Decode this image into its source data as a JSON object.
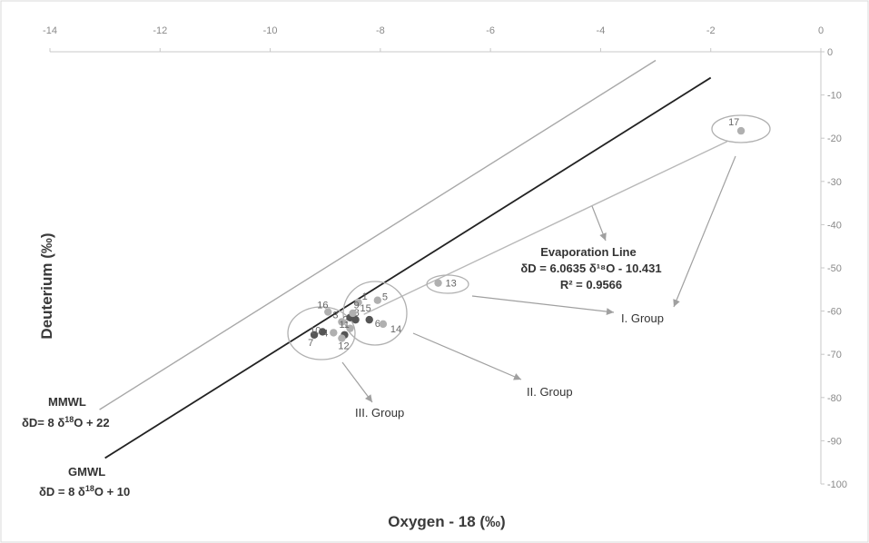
{
  "chart_data": {
    "type": "scatter",
    "xlabel": "Oxygen - 18 (‰)",
    "ylabel": "Deuterium (‰)",
    "xlim": [
      -14,
      0
    ],
    "ylim": [
      -100,
      0
    ],
    "x_axis_position": "top",
    "y_axis_position": "right",
    "x_ticks": [
      "-14",
      "-12",
      "-10",
      "-8",
      "-6",
      "-4",
      "-2",
      "0"
    ],
    "y_ticks": [
      "0",
      "-10",
      "-20",
      "-30",
      "-40",
      "-50",
      "-60",
      "-70",
      "-80",
      "-90",
      "-100"
    ],
    "grid": false,
    "colors": {
      "axis": "#c8c8c8",
      "mmwl": "#a8a8a8",
      "gmwl": "#222222",
      "evap": "#b8b8b8",
      "arrow": "#a0a0a0",
      "ellipse": "#b0b0b0",
      "dark_point": "#555555",
      "light_point": "#b0b0b0"
    },
    "lines": [
      {
        "name": "MMWL",
        "slope": 8,
        "intercept": 22,
        "x_range": [
          -13.1,
          -3.0
        ],
        "label_lines": [
          "MMWL",
          "δD= 8 δ18O + 22"
        ]
      },
      {
        "name": "GMWL",
        "slope": 8,
        "intercept": 10,
        "x_range": [
          -13.0,
          -2.0
        ],
        "label_lines": [
          "GMWL",
          "δD = 8 δ18O + 10"
        ]
      },
      {
        "name": "Evaporation Line",
        "slope": 6.0635,
        "intercept": -10.431,
        "x_range": [
          -8.3,
          -1.7
        ]
      }
    ],
    "evaporation_label": {
      "title": "Evaporation Line",
      "equation": "δD = 6.0635 δ¹⁸O - 10.431",
      "r2": "R² = 0.9566"
    },
    "points": [
      {
        "id": "1",
        "x": -8.4,
        "y": -58,
        "shade": "light"
      },
      {
        "id": "2",
        "x": -8.55,
        "y": -64,
        "shade": "light"
      },
      {
        "id": "3",
        "x": -8.7,
        "y": -62.5,
        "shade": "light"
      },
      {
        "id": "4",
        "x": -8.85,
        "y": -65,
        "shade": "light"
      },
      {
        "id": "5",
        "x": -8.05,
        "y": -57.5,
        "shade": "light"
      },
      {
        "id": "6",
        "x": -8.2,
        "y": -62,
        "shade": "dark"
      },
      {
        "id": "7",
        "x": -9.2,
        "y": -65.5,
        "shade": "dark"
      },
      {
        "id": "8",
        "x": -8.45,
        "y": -62,
        "shade": "dark"
      },
      {
        "id": "9",
        "x": -8.55,
        "y": -61.5,
        "shade": "dark"
      },
      {
        "id": "10",
        "x": -9.05,
        "y": -64.8,
        "shade": "dark"
      },
      {
        "id": "11",
        "x": -8.65,
        "y": -65.5,
        "shade": "dark"
      },
      {
        "id": "12",
        "x": -8.7,
        "y": -66.3,
        "shade": "light"
      },
      {
        "id": "13",
        "x": -6.95,
        "y": -53.5,
        "shade": "light"
      },
      {
        "id": "14",
        "x": -7.95,
        "y": -63,
        "shade": "light"
      },
      {
        "id": "15",
        "x": -8.5,
        "y": -60.5,
        "shade": "light"
      },
      {
        "id": "16",
        "x": -8.95,
        "y": -60.2,
        "shade": "light"
      },
      {
        "id": "17",
        "x": -1.45,
        "y": -18.3,
        "shade": "light"
      }
    ],
    "group_labels": [
      "I. Group",
      "II. Group",
      "III. Group"
    ]
  }
}
